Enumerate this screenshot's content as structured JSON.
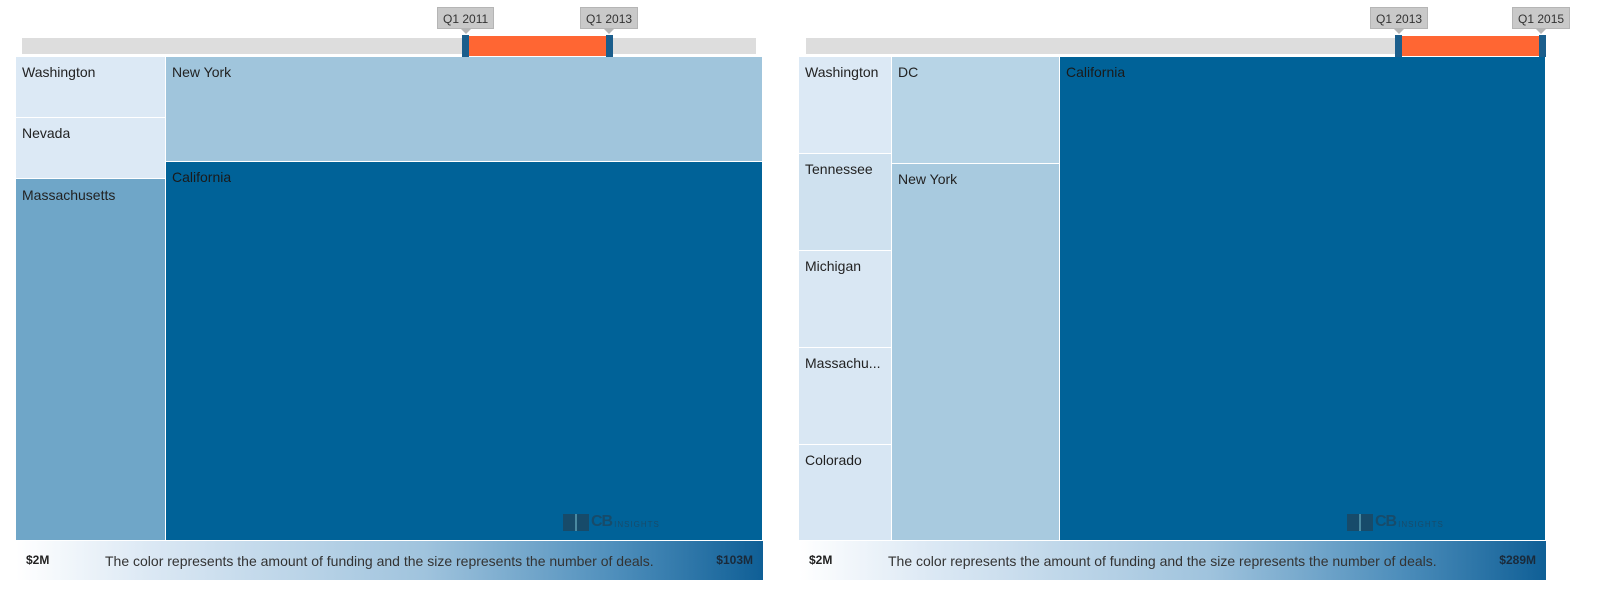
{
  "chart_data": [
    {
      "type": "treemap",
      "range": {
        "start": "Q1 2011",
        "end": "Q1 2013"
      },
      "legend": {
        "min": "$2M",
        "max": "$103M",
        "text": "The color represents the amount of funding and the size represents the number of deals."
      },
      "items": [
        {
          "name": "Washington",
          "color": "#dce9f5"
        },
        {
          "name": "Nevada",
          "color": "#dce9f5"
        },
        {
          "name": "Massachusetts",
          "color": "#6fa6c8"
        },
        {
          "name": "New York",
          "color": "#a0c5dc"
        },
        {
          "name": "California",
          "color": "#006298"
        }
      ],
      "watermark": {
        "brand": "CB",
        "suffix": "INSIGHTS"
      }
    },
    {
      "type": "treemap",
      "range": {
        "start": "Q1 2013",
        "end": "Q1 2015"
      },
      "legend": {
        "min": "$2M",
        "max": "$289M",
        "text": "The color represents the amount of funding and the size represents the number of deals."
      },
      "items": [
        {
          "name": "Washington",
          "color": "#dce9f5"
        },
        {
          "name": "Tennessee",
          "color": "#cfe1ef"
        },
        {
          "name": "Michigan",
          "color": "#d9e7f3"
        },
        {
          "name": "Massachu...",
          "color": "#d9e7f3"
        },
        {
          "name": "Colorado",
          "color": "#d7e6f3"
        },
        {
          "name": "DC",
          "color": "#b7d4e6"
        },
        {
          "name": "New York",
          "color": "#a8cadf"
        },
        {
          "name": "California",
          "color": "#006298"
        }
      ],
      "watermark": {
        "brand": "CB",
        "suffix": "INSIGHTS"
      }
    }
  ]
}
